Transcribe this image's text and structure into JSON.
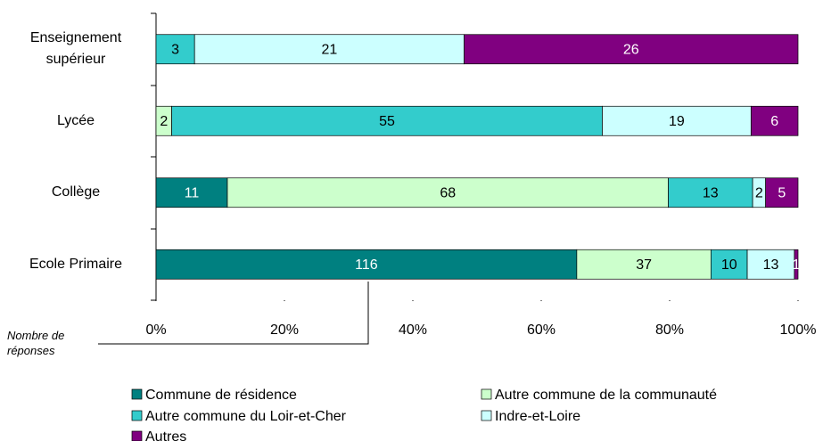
{
  "chart_data": {
    "type": "stacked_bar_100_horizontal",
    "note_label": "Nombre de réponses",
    "categories": [
      "Enseignement supérieur",
      "Lycée",
      "Collège",
      "Ecole Primaire"
    ],
    "series": [
      {
        "name": "Commune de résidence",
        "color": "#008080",
        "values": [
          null,
          null,
          11,
          116
        ]
      },
      {
        "name": "Autre commune de la communauté",
        "color": "#ccffcc",
        "values": [
          null,
          2,
          68,
          37
        ]
      },
      {
        "name": "Autre commune du Loir-et-Cher",
        "color": "#33cccc",
        "values": [
          3,
          55,
          13,
          10
        ]
      },
      {
        "name": "Indre-et-Loire",
        "color": "#ccffff",
        "values": [
          21,
          19,
          2,
          13
        ]
      },
      {
        "name": "Autres",
        "color": "#800080",
        "values": [
          26,
          6,
          5,
          1
        ]
      }
    ],
    "xlim": [
      0,
      100
    ],
    "xticks": [
      {
        "value": 0,
        "label": "0%"
      },
      {
        "value": 20,
        "label": "20%"
      },
      {
        "value": 40,
        "label": "40%"
      },
      {
        "value": 60,
        "label": "60%"
      },
      {
        "value": 80,
        "label": "80%"
      },
      {
        "value": 100,
        "label": "100%"
      }
    ]
  }
}
